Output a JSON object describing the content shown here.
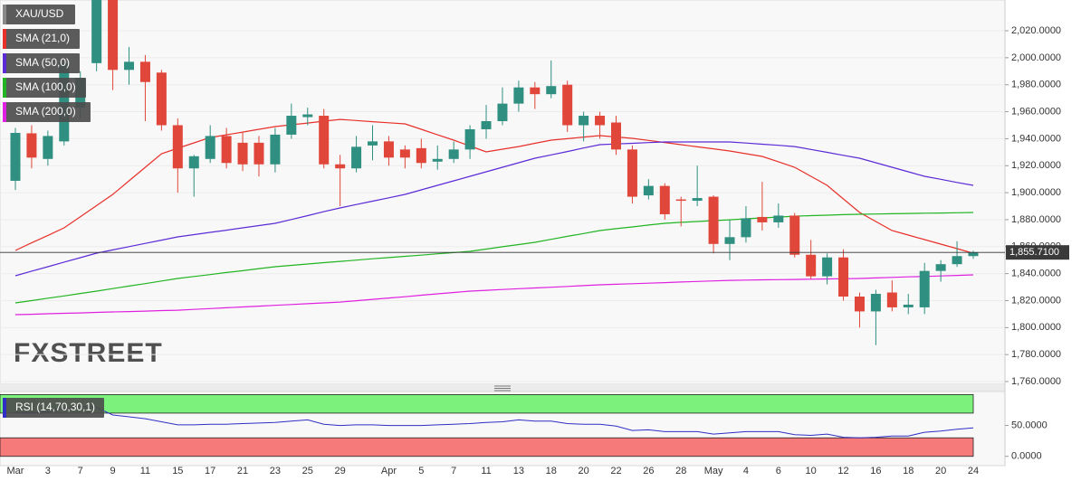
{
  "chart_data": [
    {
      "type": "candlestick",
      "name": "XAU/USD",
      "up_color": "#2f8f80",
      "down_color": "#e0463a",
      "categories": [
        "Mar",
        null,
        "3",
        null,
        "7",
        null,
        "9",
        null,
        "11",
        null,
        "15",
        null,
        "17",
        null,
        "21",
        null,
        "23",
        null,
        "25",
        null,
        "29",
        null,
        null,
        "Apr",
        null,
        "5",
        null,
        "7",
        null,
        "11",
        null,
        "13",
        null,
        "18",
        null,
        "20",
        null,
        "22",
        null,
        "26",
        null,
        "28",
        null,
        "May",
        null,
        "4",
        null,
        "6",
        null,
        "10",
        null,
        "12",
        null,
        "16",
        null,
        "18",
        null,
        "20",
        null,
        "24"
      ],
      "open": [
        1908.8,
        1944,
        1925,
        1938,
        1963,
        1996,
        2060,
        1991,
        1997,
        1989,
        1950,
        1918,
        1925,
        1942,
        1937,
        1937,
        1921,
        1943,
        1956,
        1957,
        1921,
        1918,
        1935,
        1938,
        1932,
        1933,
        1923,
        1925,
        1932,
        1947,
        1953,
        1966,
        1978,
        1973,
        1980,
        1950,
        1957,
        1952,
        1932,
        1898,
        1905,
        1895,
        1894,
        1897,
        1862,
        1867,
        1882,
        1878,
        1883,
        1854,
        1838,
        1852,
        1823,
        1812,
        1826,
        1815,
        1815,
        1842,
        1847,
        1853
      ],
      "high": [
        1948,
        1950,
        1946,
        2000,
        1990,
        2062,
        2068,
        2008,
        2002,
        1991,
        1955,
        1928,
        1950,
        1948,
        1945,
        1942,
        1948,
        1966,
        1963,
        1962,
        1928,
        1942,
        1950,
        1942,
        1935,
        1940,
        1935,
        1938,
        1950,
        1965,
        1978,
        1983,
        1982,
        1998,
        1983,
        1960,
        1960,
        1957,
        1935,
        1910,
        1907,
        1897,
        1920,
        1898,
        1880,
        1890,
        1908,
        1892,
        1885,
        1865,
        1855,
        1858,
        1826,
        1828,
        1835,
        1825,
        1848,
        1850,
        1864,
        1857
      ],
      "low": [
        1902,
        1918,
        1920,
        1935,
        1955,
        1990,
        1976,
        1980,
        1953,
        1946,
        1900,
        1897,
        1922,
        1918,
        1916,
        1912,
        1915,
        1940,
        1950,
        1918,
        1890,
        1915,
        1924,
        1920,
        1918,
        1918,
        1917,
        1922,
        1925,
        1940,
        1950,
        1960,
        1962,
        1970,
        1945,
        1938,
        1940,
        1928,
        1892,
        1895,
        1880,
        1875,
        1890,
        1855,
        1850,
        1863,
        1872,
        1874,
        1852,
        1836,
        1832,
        1820,
        1800,
        1787,
        1812,
        1810,
        1810,
        1834,
        1845,
        1851
      ],
      "close": [
        1944.3,
        1926,
        1942,
        1996,
        1985,
        2055,
        1991,
        1997,
        1982,
        1950,
        1918,
        1927,
        1942,
        1922,
        1921,
        1921,
        1943,
        1957,
        1958,
        1921,
        1918,
        1934,
        1938,
        1926,
        1926,
        1922,
        1925,
        1932,
        1947,
        1953,
        1966,
        1978,
        1973,
        1979,
        1950,
        1957,
        1950,
        1932,
        1897,
        1905,
        1884,
        1894,
        1896,
        1862,
        1867,
        1881,
        1878,
        1883,
        1854,
        1838,
        1852,
        1823,
        1812,
        1825,
        1815,
        1817,
        1842,
        1847,
        1853,
        1855.71
      ],
      "series": [
        {
          "name": "SMA (21,0)",
          "color": "#e8302a",
          "values": [
            1857.2,
            1862.8,
            1868.3,
            1873.9,
            1882.2,
            1890.4,
            1898.7,
            1908.8,
            1918.8,
            1928.9,
            1932.9,
            1936.9,
            1940.9,
            1942.9,
            1944.9,
            1947.0,
            1949.0,
            1950.3,
            1951.6,
            1953.0,
            1954.3,
            1953.5,
            1952.6,
            1951.8,
            1951.0,
            1947.0,
            1942.9,
            1938.9,
            1934.6,
            1930.2,
            1932.2,
            1934.2,
            1936.6,
            1938.9,
            1940.0,
            1941.2,
            1942.3,
            1941.3,
            1940.3,
            1938.7,
            1937.2,
            1935.6,
            1934.0,
            1932.5,
            1930.9,
            1928.9,
            1926.9,
            1922.9,
            1918.8,
            1912.1,
            1905.4,
            1895.4,
            1885.3,
            1878.6,
            1871.9,
            1868.6,
            1865.2,
            1861.9,
            1858.5,
            1855.1
          ]
        },
        {
          "name": "SMA (50,0)",
          "color": "#5b2bd6",
          "values": [
            1838.4,
            1841.8,
            1845.1,
            1848.5,
            1851.8,
            1855.2,
            1857.6,
            1860.0,
            1862.4,
            1864.8,
            1867.2,
            1868.9,
            1870.6,
            1872.2,
            1873.9,
            1875.6,
            1877.3,
            1880.1,
            1883.0,
            1885.9,
            1888.7,
            1891.2,
            1893.7,
            1896.2,
            1898.7,
            1902.1,
            1905.4,
            1908.8,
            1912.1,
            1915.5,
            1918.8,
            1922.2,
            1925.5,
            1928.0,
            1930.5,
            1933.1,
            1935.6,
            1936.1,
            1936.6,
            1937.1,
            1937.6,
            1937.6,
            1937.6,
            1937.6,
            1937.6,
            1936.8,
            1935.9,
            1935.1,
            1934.2,
            1932.0,
            1929.9,
            1927.7,
            1925.5,
            1922.2,
            1918.8,
            1915.5,
            1912.1,
            1909.9,
            1907.6,
            1905.4
          ]
        },
        {
          "name": "SMA (100,0)",
          "color": "#22b422",
          "values": [
            1818.3,
            1820.0,
            1821.8,
            1823.5,
            1825.3,
            1827.0,
            1828.9,
            1830.8,
            1832.6,
            1834.5,
            1836.4,
            1837.9,
            1839.3,
            1840.8,
            1842.2,
            1843.7,
            1845.1,
            1846.1,
            1847.1,
            1848.1,
            1849.1,
            1850.0,
            1851.0,
            1851.9,
            1852.8,
            1853.7,
            1854.7,
            1855.6,
            1856.5,
            1858.2,
            1859.9,
            1861.5,
            1863.2,
            1865.4,
            1867.6,
            1869.7,
            1871.9,
            1873.3,
            1874.6,
            1876.0,
            1877.3,
            1878.0,
            1878.6,
            1879.3,
            1879.9,
            1880.6,
            1881.3,
            1881.9,
            1882.6,
            1883.0,
            1883.3,
            1883.7,
            1884.0,
            1884.2,
            1884.4,
            1884.6,
            1884.8,
            1884.9,
            1885.1,
            1885.3
          ]
        },
        {
          "name": "SMA (200,0)",
          "color": "#e020e0",
          "values": [
            1809.6,
            1809.9,
            1810.3,
            1810.6,
            1810.9,
            1811.3,
            1811.6,
            1811.9,
            1812.2,
            1812.6,
            1812.9,
            1813.5,
            1814.1,
            1814.7,
            1815.3,
            1815.9,
            1816.5,
            1817.1,
            1817.7,
            1818.3,
            1818.9,
            1819.9,
            1820.9,
            1821.9,
            1822.9,
            1824.0,
            1825.0,
            1826.0,
            1827.0,
            1827.6,
            1828.2,
            1828.8,
            1829.4,
            1829.9,
            1830.5,
            1831.1,
            1831.7,
            1832.1,
            1832.5,
            1832.9,
            1833.3,
            1833.8,
            1834.2,
            1834.6,
            1835.0,
            1835.2,
            1835.4,
            1835.5,
            1835.7,
            1835.9,
            1836.1,
            1836.2,
            1836.4,
            1836.8,
            1837.2,
            1837.6,
            1837.9,
            1838.3,
            1838.7,
            1839.1
          ]
        }
      ],
      "last_price": {
        "value": 1855.71,
        "label": "1,855.7100"
      },
      "ylim": [
        1758.0,
        2042.8
      ],
      "yticks": [
        {
          "value": 1760,
          "label": "1,760.0000"
        },
        {
          "value": 1780,
          "label": "1,780.0000"
        },
        {
          "value": 1800,
          "label": "1,800.0000"
        },
        {
          "value": 1820,
          "label": "1,820.0000"
        },
        {
          "value": 1840,
          "label": "1,840.0000"
        },
        {
          "value": 1860,
          "label": "1,860.0000"
        },
        {
          "value": 1880,
          "label": "1,880.0000"
        },
        {
          "value": 1900,
          "label": "1,900.0000"
        },
        {
          "value": 1920,
          "label": "1,920.0000"
        },
        {
          "value": 1940,
          "label": "1,940.0000"
        },
        {
          "value": 1960,
          "label": "1,960.0000"
        },
        {
          "value": 1980,
          "label": "1,980.0000"
        },
        {
          "value": 2000,
          "label": "2,000.0000"
        },
        {
          "value": 2020,
          "label": "2,020.0000"
        }
      ],
      "grid": true,
      "watermark": "FXSTREET"
    },
    {
      "type": "line",
      "series": [
        {
          "name": "RSI (14,70,30,1)",
          "color": "#2f2fc4",
          "values": [
            71.4,
            71,
            72,
            77,
            81,
            79,
            67,
            64,
            61,
            56,
            51,
            51,
            52,
            52,
            53,
            54,
            55,
            57,
            59,
            52,
            50,
            51,
            51,
            50,
            50,
            50,
            51,
            52,
            53,
            55,
            56,
            59,
            57,
            57,
            53,
            52,
            52,
            49,
            42,
            43,
            40,
            40,
            40,
            36,
            38,
            40,
            40,
            40,
            35,
            34,
            36,
            31,
            30,
            31,
            33,
            33,
            39,
            41,
            44,
            46
          ]
        }
      ],
      "bands": [
        {
          "range": [
            70,
            100
          ],
          "color": "#7cf27c"
        },
        {
          "range": [
            0,
            30
          ],
          "color": "#f77a7a"
        }
      ],
      "ylim": [
        -15,
        105
      ],
      "yticks": [
        {
          "value": 0,
          "label": "0.0000"
        },
        {
          "value": 50,
          "label": "50.0000"
        }
      ]
    }
  ]
}
